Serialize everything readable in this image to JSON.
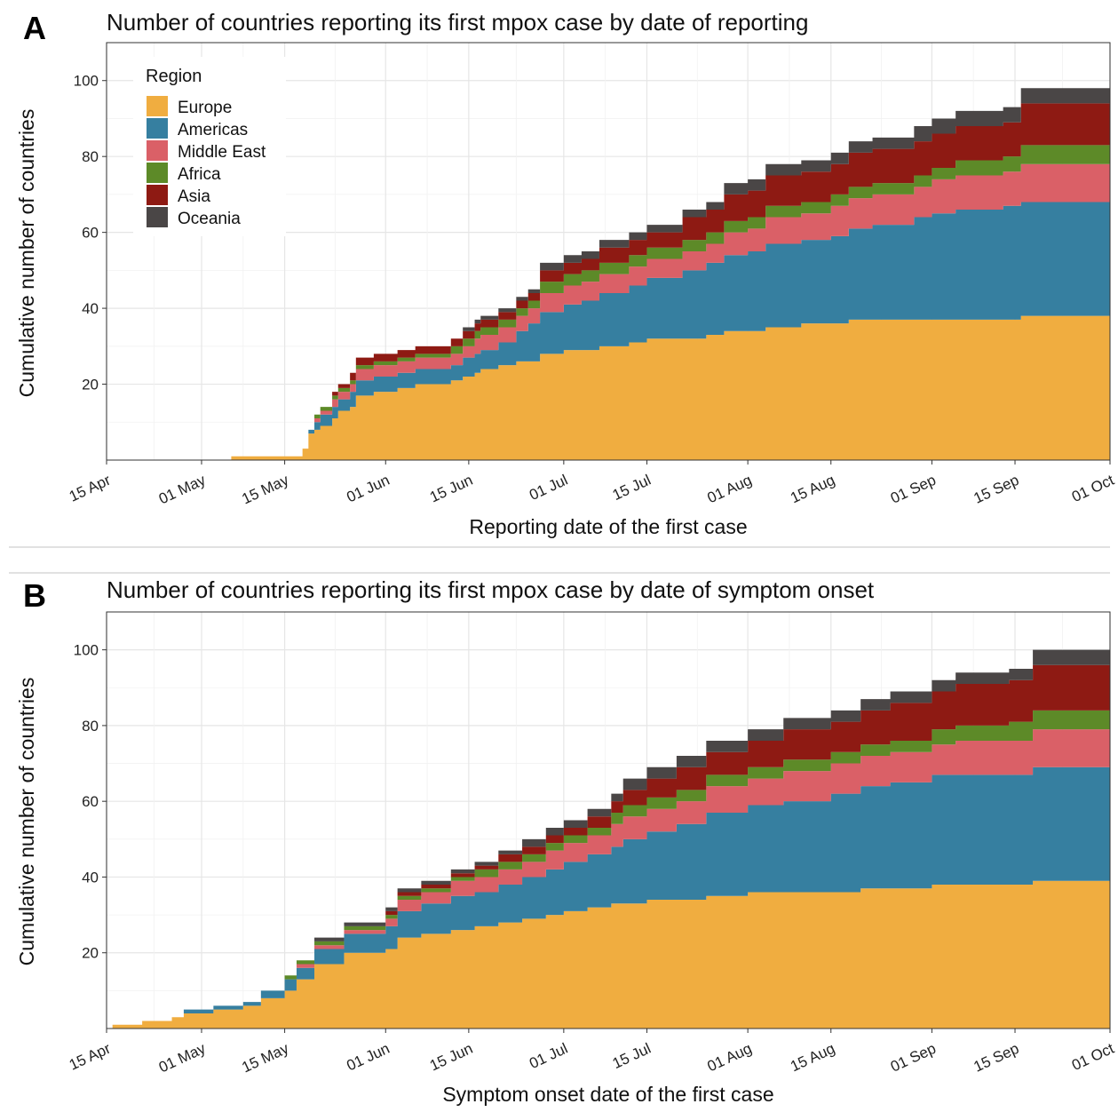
{
  "legend": {
    "title": "Region",
    "items": [
      {
        "label": "Europe",
        "color": "#F0AD40"
      },
      {
        "label": "Americas",
        "color": "#367FA0"
      },
      {
        "label": "Middle East",
        "color": "#DA6067"
      },
      {
        "label": "Africa",
        "color": "#5D8A28"
      },
      {
        "label": "Asia",
        "color": "#8E1A13"
      },
      {
        "label": "Oceania",
        "color": "#4A4646"
      }
    ]
  },
  "chart_data": [
    {
      "panel": "A",
      "type": "area",
      "stacked": true,
      "step": true,
      "title": "Number of countries reporting its first mpox case by date of reporting",
      "xlabel": "Reporting date of the first case",
      "ylabel": "Cumulative number of countries",
      "x_ticks": [
        "15 Apr",
        "01 May",
        "15 May",
        "01 Jun",
        "15 Jun",
        "01 Jul",
        "15 Jul",
        "01 Aug",
        "15 Aug",
        "01 Sep",
        "15 Sep",
        "01 Oct"
      ],
      "x_range": [
        "2022-04-15",
        "2022-10-01"
      ],
      "y_ticks": [
        20,
        40,
        60,
        80,
        100
      ],
      "ylim": [
        0,
        110
      ],
      "grid": true,
      "legend_position": "top-left",
      "x": [
        "2022-05-06",
        "2022-05-17",
        "2022-05-18",
        "2022-05-19",
        "2022-05-20",
        "2022-05-21",
        "2022-05-23",
        "2022-05-24",
        "2022-05-26",
        "2022-05-27",
        "2022-05-30",
        "2022-06-03",
        "2022-06-06",
        "2022-06-12",
        "2022-06-14",
        "2022-06-16",
        "2022-06-17",
        "2022-06-20",
        "2022-06-23",
        "2022-06-25",
        "2022-06-27",
        "2022-07-01",
        "2022-07-04",
        "2022-07-07",
        "2022-07-12",
        "2022-07-15",
        "2022-07-21",
        "2022-07-25",
        "2022-07-28",
        "2022-08-01",
        "2022-08-04",
        "2022-08-10",
        "2022-08-15",
        "2022-08-18",
        "2022-08-22",
        "2022-08-29",
        "2022-09-01",
        "2022-09-05",
        "2022-09-10",
        "2022-09-13",
        "2022-09-16",
        "2022-10-01"
      ],
      "series": [
        {
          "name": "Europe",
          "values": [
            1,
            1,
            3,
            7,
            8,
            9,
            11,
            13,
            14,
            17,
            18,
            19,
            20,
            21,
            22,
            23,
            24,
            25,
            26,
            26,
            28,
            29,
            29,
            30,
            31,
            32,
            32,
            33,
            34,
            34,
            35,
            36,
            36,
            37,
            37,
            37,
            37,
            37,
            37,
            37,
            38,
            38
          ]
        },
        {
          "name": "Americas",
          "values": [
            0,
            0,
            0,
            1,
            2,
            3,
            3,
            3,
            4,
            4,
            4,
            4,
            4,
            4,
            5,
            5,
            5,
            6,
            8,
            10,
            11,
            12,
            13,
            14,
            15,
            16,
            18,
            19,
            20,
            21,
            22,
            22,
            23,
            24,
            25,
            27,
            28,
            29,
            29,
            30,
            30,
            30
          ]
        },
        {
          "name": "Middle East",
          "values": [
            0,
            0,
            0,
            0,
            1,
            1,
            2,
            2,
            2,
            3,
            3,
            3,
            3,
            3,
            3,
            4,
            4,
            4,
            4,
            4,
            5,
            5,
            5,
            5,
            5,
            5,
            5,
            5,
            6,
            6,
            7,
            7,
            8,
            8,
            8,
            8,
            9,
            9,
            9,
            9,
            10,
            10
          ]
        },
        {
          "name": "Africa",
          "values": [
            0,
            0,
            0,
            0,
            1,
            1,
            1,
            1,
            1,
            1,
            1,
            1,
            1,
            2,
            2,
            2,
            2,
            2,
            2,
            2,
            3,
            3,
            3,
            3,
            3,
            3,
            3,
            3,
            3,
            3,
            3,
            3,
            3,
            3,
            3,
            3,
            3,
            4,
            4,
            4,
            5,
            5
          ]
        },
        {
          "name": "Asia",
          "values": [
            0,
            0,
            0,
            0,
            0,
            0,
            1,
            1,
            2,
            2,
            2,
            2,
            2,
            2,
            2,
            2,
            2,
            2,
            2,
            2,
            3,
            3,
            3,
            4,
            4,
            4,
            6,
            6,
            7,
            7,
            8,
            8,
            8,
            9,
            9,
            9,
            9,
            9,
            9,
            9,
            11,
            11
          ]
        },
        {
          "name": "Oceania",
          "values": [
            0,
            0,
            0,
            0,
            0,
            0,
            0,
            0,
            0,
            0,
            0,
            0,
            0,
            0,
            1,
            1,
            1,
            1,
            1,
            1,
            2,
            2,
            2,
            2,
            2,
            2,
            2,
            2,
            3,
            3,
            3,
            3,
            3,
            3,
            3,
            4,
            4,
            4,
            4,
            4,
            4,
            4
          ]
        }
      ]
    },
    {
      "panel": "B",
      "type": "area",
      "stacked": true,
      "step": true,
      "title": "Number of countries reporting its first mpox case by date of symptom onset",
      "xlabel": "Symptom onset date of the first case",
      "ylabel": "Cumulative number of countries",
      "x_ticks": [
        "15 Apr",
        "01 May",
        "15 May",
        "01 Jun",
        "15 Jun",
        "01 Jul",
        "15 Jul",
        "01 Aug",
        "15 Aug",
        "01 Sep",
        "15 Sep",
        "01 Oct"
      ],
      "x_range": [
        "2022-04-15",
        "2022-10-01"
      ],
      "y_ticks": [
        20,
        40,
        60,
        80,
        100
      ],
      "ylim": [
        0,
        110
      ],
      "grid": true,
      "x": [
        "2022-04-16",
        "2022-04-21",
        "2022-04-26",
        "2022-04-28",
        "2022-05-03",
        "2022-05-08",
        "2022-05-11",
        "2022-05-15",
        "2022-05-17",
        "2022-05-20",
        "2022-05-25",
        "2022-06-01",
        "2022-06-03",
        "2022-06-07",
        "2022-06-12",
        "2022-06-16",
        "2022-06-20",
        "2022-06-24",
        "2022-06-28",
        "2022-07-01",
        "2022-07-05",
        "2022-07-09",
        "2022-07-11",
        "2022-07-15",
        "2022-07-20",
        "2022-07-25",
        "2022-08-01",
        "2022-08-07",
        "2022-08-15",
        "2022-08-20",
        "2022-08-25",
        "2022-09-01",
        "2022-09-05",
        "2022-09-10",
        "2022-09-14",
        "2022-09-18",
        "2022-10-01"
      ],
      "series": [
        {
          "name": "Europe",
          "values": [
            1,
            2,
            3,
            4,
            5,
            6,
            8,
            10,
            13,
            17,
            20,
            21,
            24,
            25,
            26,
            27,
            28,
            29,
            30,
            31,
            32,
            33,
            33,
            34,
            34,
            35,
            36,
            36,
            36,
            37,
            37,
            38,
            38,
            38,
            38,
            39,
            39
          ]
        },
        {
          "name": "Americas",
          "values": [
            0,
            0,
            0,
            1,
            1,
            1,
            2,
            3,
            3,
            4,
            5,
            6,
            7,
            8,
            9,
            9,
            10,
            11,
            12,
            13,
            14,
            15,
            17,
            18,
            20,
            22,
            23,
            24,
            26,
            27,
            28,
            29,
            29,
            29,
            29,
            30,
            30
          ]
        },
        {
          "name": "Middle East",
          "values": [
            0,
            0,
            0,
            0,
            0,
            0,
            0,
            0,
            1,
            1,
            1,
            2,
            3,
            3,
            4,
            4,
            4,
            4,
            5,
            5,
            5,
            6,
            6,
            6,
            6,
            7,
            7,
            8,
            8,
            8,
            8,
            8,
            9,
            9,
            9,
            10,
            10
          ]
        },
        {
          "name": "Africa",
          "values": [
            0,
            0,
            0,
            0,
            0,
            0,
            0,
            1,
            1,
            1,
            1,
            1,
            1,
            1,
            1,
            2,
            2,
            2,
            2,
            2,
            2,
            3,
            3,
            3,
            3,
            3,
            3,
            3,
            3,
            3,
            3,
            4,
            4,
            4,
            5,
            5,
            5
          ]
        },
        {
          "name": "Asia",
          "values": [
            0,
            0,
            0,
            0,
            0,
            0,
            0,
            0,
            0,
            0,
            0,
            1,
            1,
            1,
            1,
            1,
            2,
            2,
            2,
            2,
            3,
            3,
            4,
            5,
            6,
            6,
            7,
            8,
            8,
            9,
            10,
            10,
            11,
            11,
            11,
            12,
            12
          ]
        },
        {
          "name": "Oceania",
          "values": [
            0,
            0,
            0,
            0,
            0,
            0,
            0,
            0,
            0,
            1,
            1,
            1,
            1,
            1,
            1,
            1,
            1,
            2,
            2,
            2,
            2,
            2,
            3,
            3,
            3,
            3,
            3,
            3,
            3,
            3,
            3,
            3,
            3,
            3,
            3,
            4,
            4
          ]
        }
      ]
    }
  ]
}
